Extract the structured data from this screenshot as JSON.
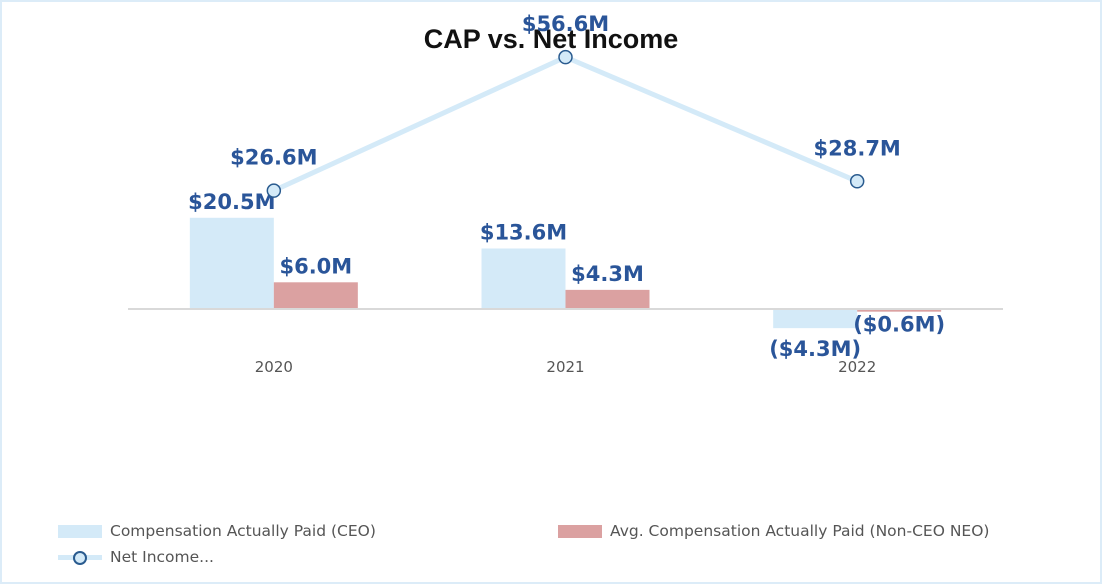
{
  "colors": {
    "ceo": "#d4eaf8",
    "neo": "#dba1a1",
    "net_income_line": "#d4eaf8",
    "marker_edge": "#2a5b8f",
    "label": "#2a5599"
  },
  "chart_data": {
    "type": "bar",
    "title": "CAP vs. Net Income",
    "categories": [
      "2020",
      "2021",
      "2022"
    ],
    "series": [
      {
        "name": "Compensation Actually Paid (CEO)",
        "kind": "bar",
        "values": [
          20.5,
          13.6,
          -4.3
        ],
        "labels": [
          "$20.5M",
          "$13.6M",
          "($4.3M)"
        ]
      },
      {
        "name": "Avg. Compensation Actually Paid (Non-CEO NEO)",
        "kind": "bar",
        "values": [
          6.0,
          4.3,
          -0.6
        ],
        "labels": [
          "$6.0M",
          "$4.3M",
          "($0.6M)"
        ]
      },
      {
        "name": "Net Income...",
        "kind": "line",
        "values": [
          26.6,
          56.6,
          28.7
        ],
        "labels": [
          "$26.6M",
          "$56.6M",
          "$28.7M"
        ]
      }
    ],
    "ylim": [
      -9,
      70
    ],
    "xlabel": "",
    "ylabel": "",
    "grid": false,
    "legend": "bottom"
  }
}
